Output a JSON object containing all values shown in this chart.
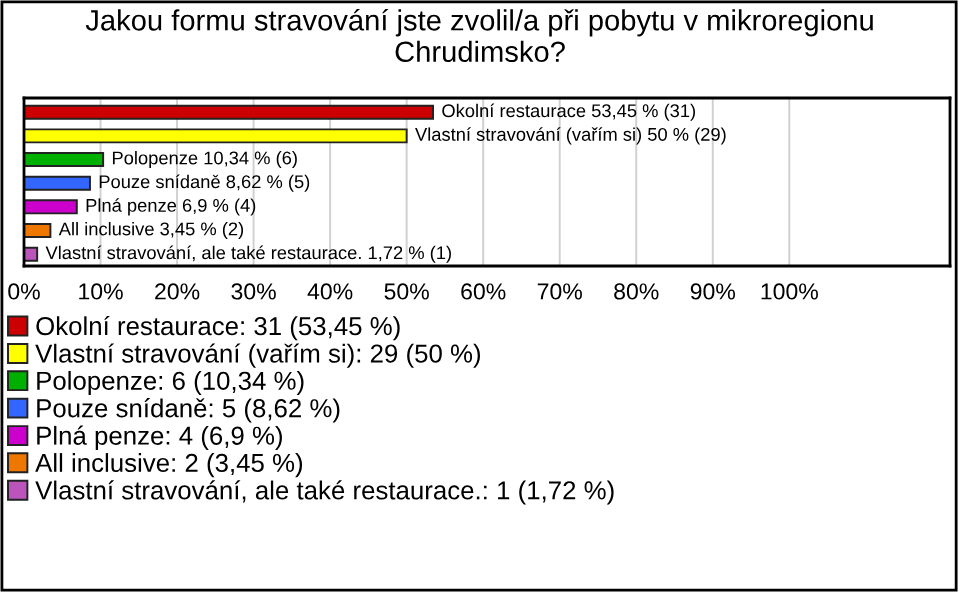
{
  "chart_data": {
    "type": "bar",
    "orientation": "horizontal",
    "title": "Jakou formu stravování jste zvolil/a při pobytu v mikroregionu Chrudimsko?",
    "categories": [
      null,
      null,
      null,
      null,
      null,
      null,
      null
    ],
    "series": [
      {
        "name": "Okolní restaurace: 31 (53,45 %)",
        "color": "#cc0000",
        "values": [
          53.45,
          null,
          null,
          null,
          null,
          null,
          null
        ],
        "value_labels": [
          "Okolní restaurace 53,45 % (31)",
          null,
          null,
          null,
          null,
          null,
          null
        ]
      },
      {
        "name": "Vlastní stravování (vařím si): 29 (50 %)",
        "color": "#ffff00",
        "values": [
          null,
          50,
          null,
          null,
          null,
          null,
          null
        ],
        "value_labels": [
          null,
          "Vlastní stravování (vařím si) 50 % (29)",
          null,
          null,
          null,
          null,
          null
        ]
      },
      {
        "name": "Polopenze: 6 (10,34 %)",
        "color": "#00b000",
        "values": [
          null,
          null,
          10.34,
          null,
          null,
          null,
          null
        ],
        "value_labels": [
          null,
          null,
          "Polopenze 10,34 % (6)",
          null,
          null,
          null,
          null
        ]
      },
      {
        "name": "Pouze snídaně: 5 (8,62 %)",
        "color": "#3366ff",
        "values": [
          null,
          null,
          null,
          8.62,
          null,
          null,
          null
        ],
        "value_labels": [
          null,
          null,
          null,
          "Pouze snídaně 8,62 % (5)",
          null,
          null,
          null
        ]
      },
      {
        "name": "Plná penze: 4 (6,9 %)",
        "color": "#cc00cc",
        "values": [
          null,
          null,
          null,
          null,
          6.9,
          null,
          null
        ],
        "value_labels": [
          null,
          null,
          null,
          null,
          "Plná penze 6,9 % (4)",
          null,
          null
        ]
      },
      {
        "name": "All inclusive: 2 (3,45 %)",
        "color": "#ee7700",
        "values": [
          null,
          null,
          null,
          null,
          null,
          3.45,
          null
        ],
        "value_labels": [
          null,
          null,
          null,
          null,
          null,
          "All inclusive 3,45 % (2)",
          null
        ]
      },
      {
        "name": "Vlastní stravování, ale také restaurace.: 1 (1,72 %)",
        "color": "#bb55bb",
        "values": [
          null,
          null,
          null,
          null,
          null,
          null,
          1.72
        ],
        "value_labels": [
          null,
          null,
          null,
          null,
          null,
          null,
          "Vlastní stravování, ale také restaurace. 1,72 % (1)"
        ]
      }
    ],
    "xlim": [
      0,
      121
    ],
    "xticks": [
      {
        "value": 0,
        "label": "0%"
      },
      {
        "value": 10,
        "label": "10%"
      },
      {
        "value": 20,
        "label": "20%"
      },
      {
        "value": 30,
        "label": "30%"
      },
      {
        "value": 40,
        "label": "40%"
      },
      {
        "value": 50,
        "label": "50%"
      },
      {
        "value": 60,
        "label": "60%"
      },
      {
        "value": 70,
        "label": "70%"
      },
      {
        "value": 80,
        "label": "80%"
      },
      {
        "value": 90,
        "label": "90%"
      },
      {
        "value": 100,
        "label": "100%"
      }
    ],
    "grid": "x",
    "legend": "bottom"
  }
}
